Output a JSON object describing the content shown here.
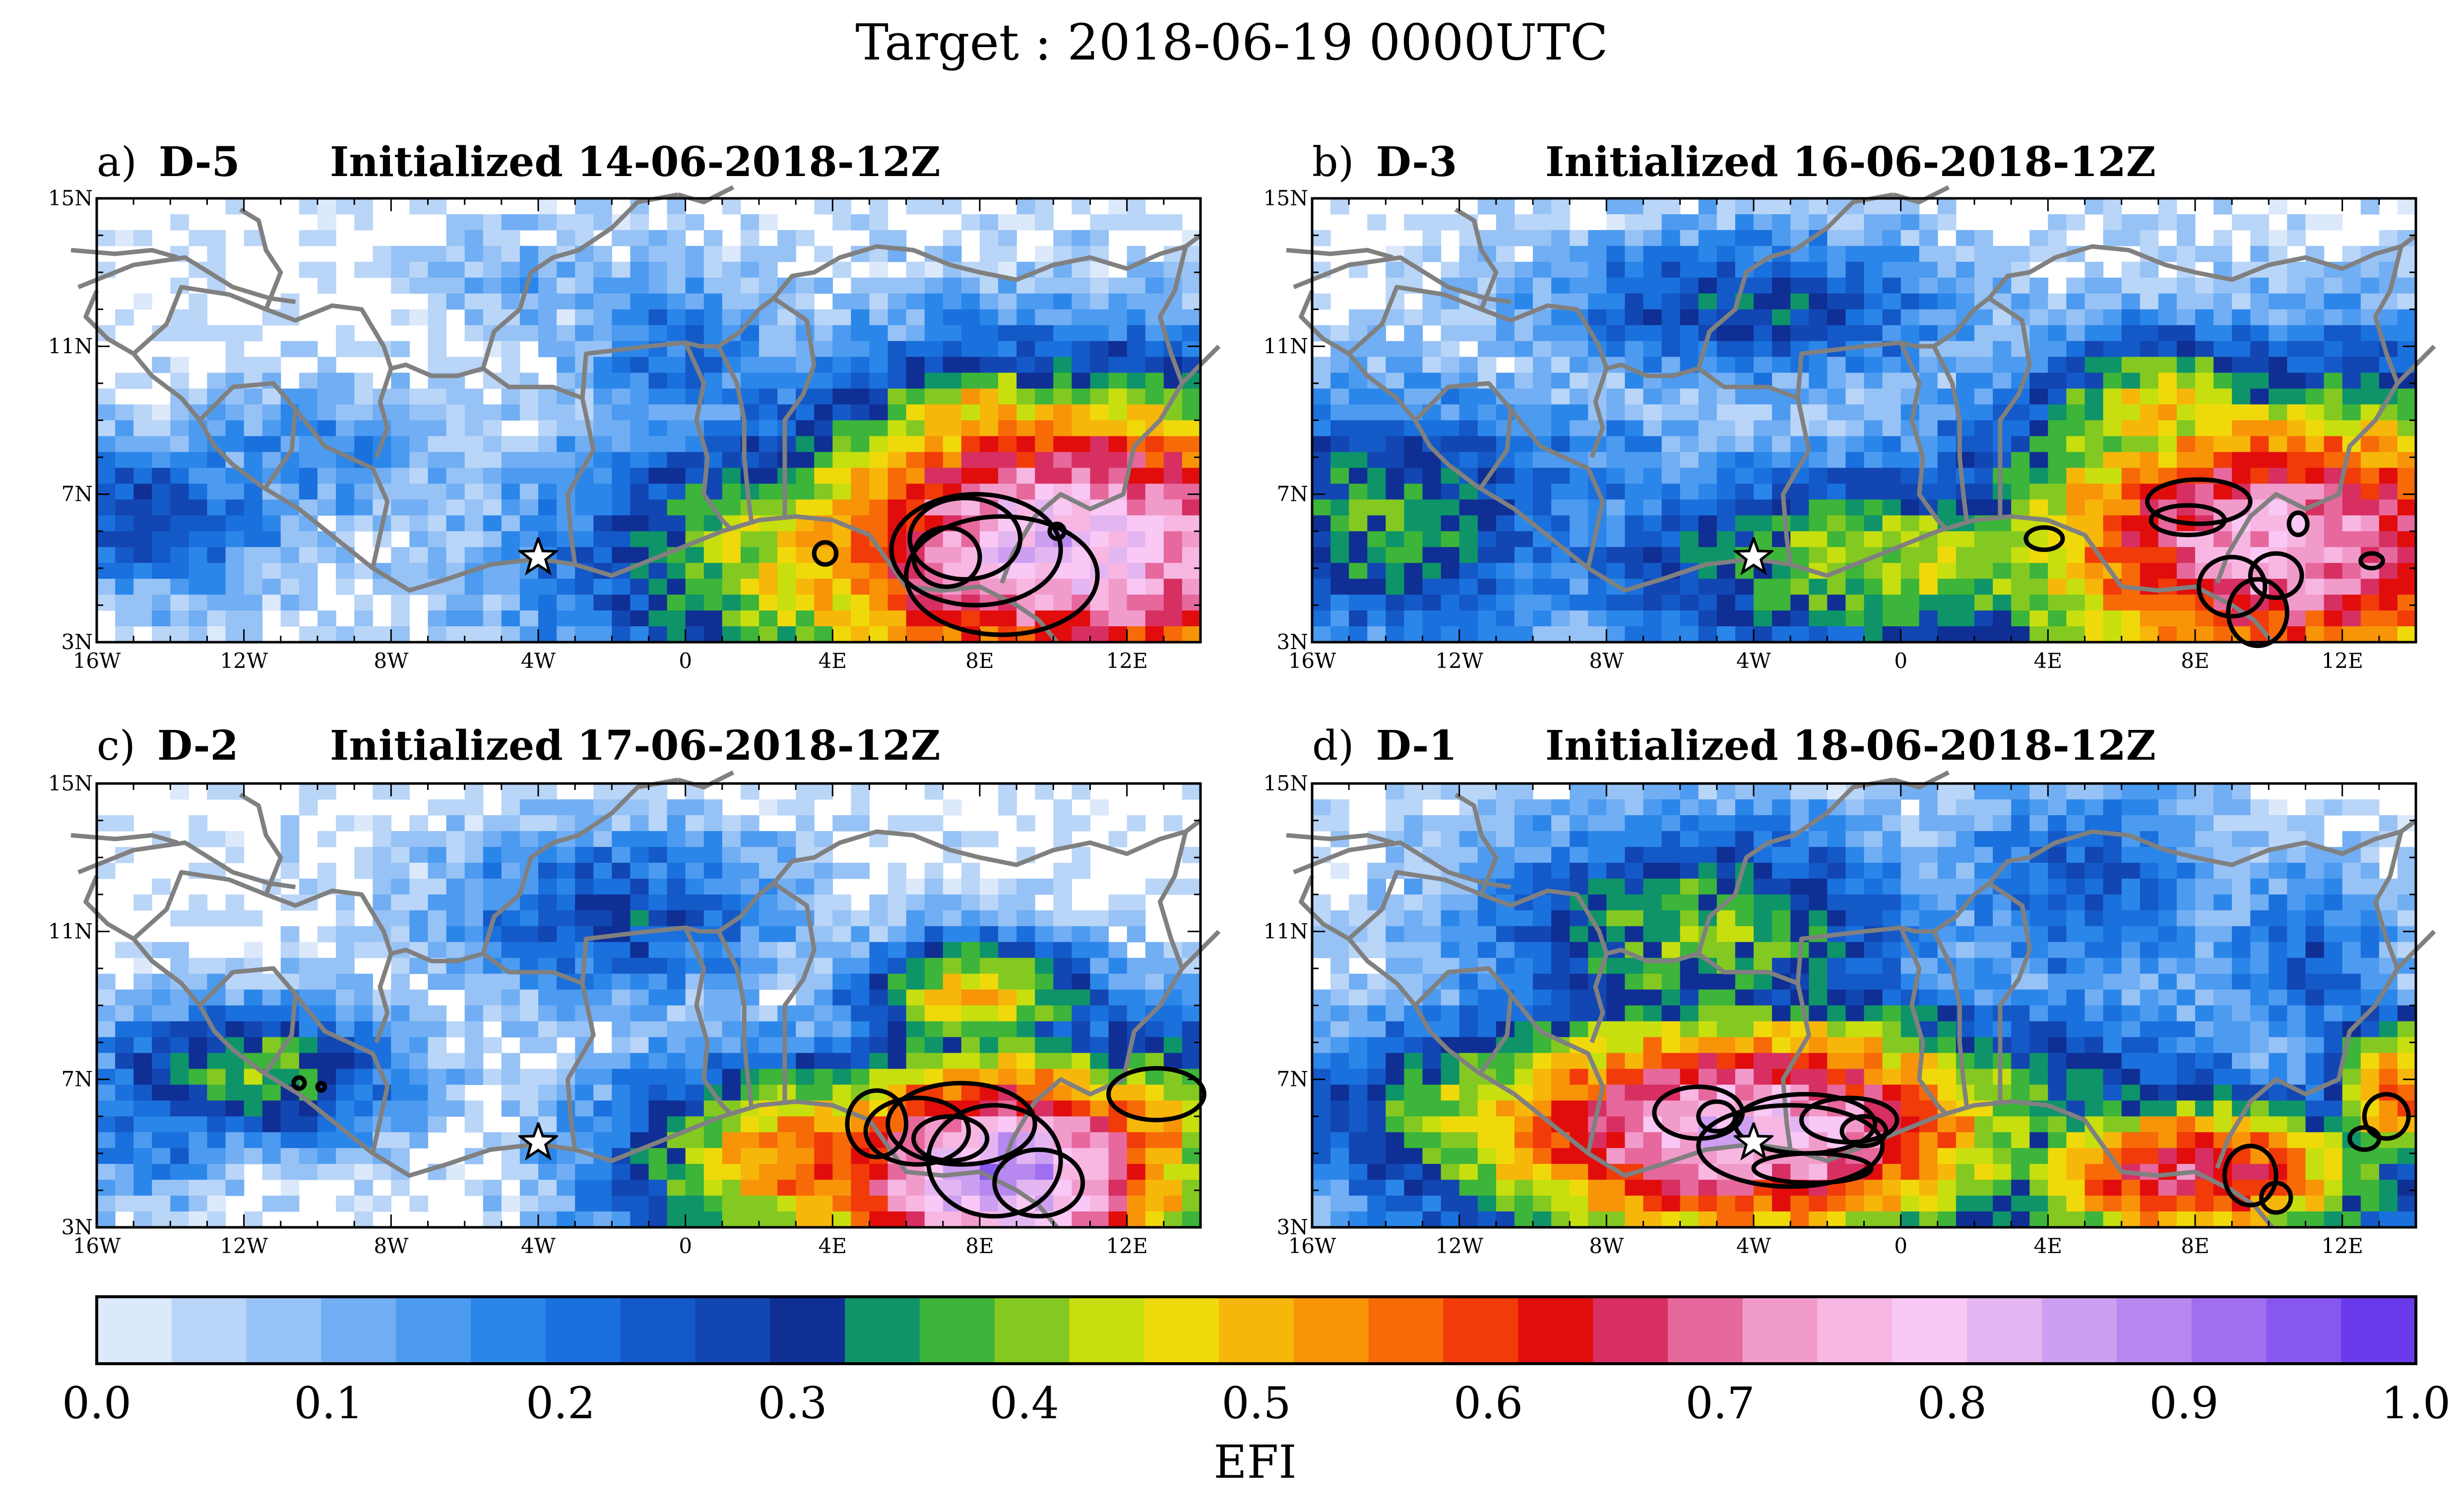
{
  "title": "Target : 2018-06-19 0000UTC",
  "panels": [
    {
      "letter": "a)",
      "lead": "D-5",
      "init": "Initialized 14-06-2018-12Z"
    },
    {
      "letter": "b)",
      "lead": "D-3",
      "init": "Initialized 16-06-2018-12Z"
    },
    {
      "letter": "c)",
      "lead": "D-2",
      "init": "Initialized 17-06-2018-12Z"
    },
    {
      "letter": "d)",
      "lead": "D-1",
      "init": "Initialized 18-06-2018-12Z"
    }
  ],
  "map_axes": {
    "lon_ticks": [
      "16W",
      "12W",
      "8W",
      "4W",
      "0",
      "4E",
      "8E",
      "12E"
    ],
    "lat_ticks": [
      "15N",
      "11N",
      "7N",
      "3N"
    ],
    "lon_range": [
      -16,
      14
    ],
    "lat_range": [
      3,
      15
    ]
  },
  "colorbar": {
    "label": "EFI",
    "ticks": [
      "0.0",
      "0.1",
      "0.2",
      "0.3",
      "0.4",
      "0.5",
      "0.6",
      "0.7",
      "0.8",
      "0.9",
      "1.0"
    ],
    "range": [
      0.0,
      1.0
    ],
    "colors": [
      "#dce9fb",
      "#b9d5f8",
      "#97c2f5",
      "#71aef3",
      "#4c9bf0",
      "#2b86ea",
      "#1a70dc",
      "#1459c8",
      "#1246b2",
      "#0f2f94",
      "#0e9468",
      "#3db43a",
      "#84c922",
      "#c7df0e",
      "#f0d90a",
      "#f7b60a",
      "#f79408",
      "#f76a08",
      "#f13b08",
      "#e10d0d",
      "#d72f61",
      "#e6689c",
      "#f19bcb",
      "#f7b7e2",
      "#fac8f4",
      "#e4b6f1",
      "#cd9ff1",
      "#b888f1",
      "#a06ff0",
      "#8658ef",
      "#6a39ea"
    ]
  },
  "markers": {
    "star_location_deg": [
      -4.0,
      5.3
    ]
  },
  "style_colors": {
    "coastline": "#808080",
    "contour": "#000000"
  }
}
